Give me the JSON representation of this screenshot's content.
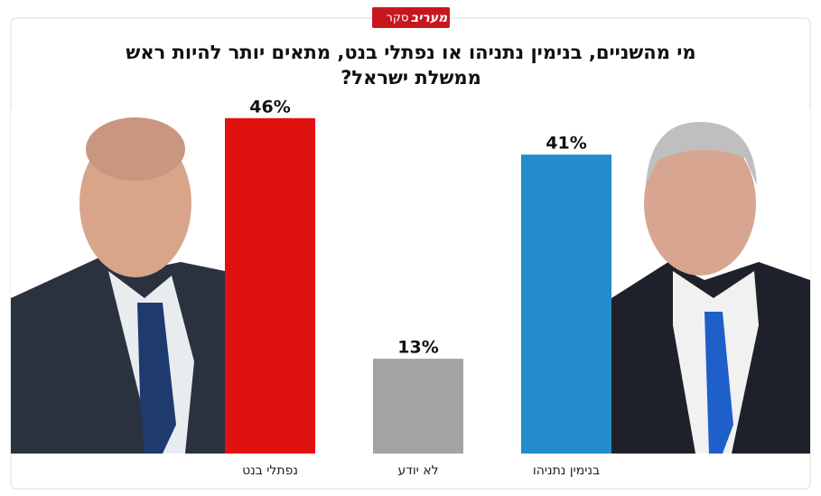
{
  "badge": {
    "label": "סקר",
    "brand": "מעריב"
  },
  "chart_data": {
    "type": "bar",
    "title": "מי מהשניים, בנימין נתניהו או נפתלי בנט, מתאים יותר להיות ראש",
    "subtitle": "ממשלת ישראל?",
    "categories": [
      "נפתלי בנט",
      "לא יודע",
      "בנימין נתניהו"
    ],
    "values": [
      46,
      13,
      41
    ],
    "value_labels": [
      "46%",
      "13%",
      "41%"
    ],
    "colors": [
      "#e0120f",
      "#a3a3a3",
      "#238ccb"
    ]
  }
}
